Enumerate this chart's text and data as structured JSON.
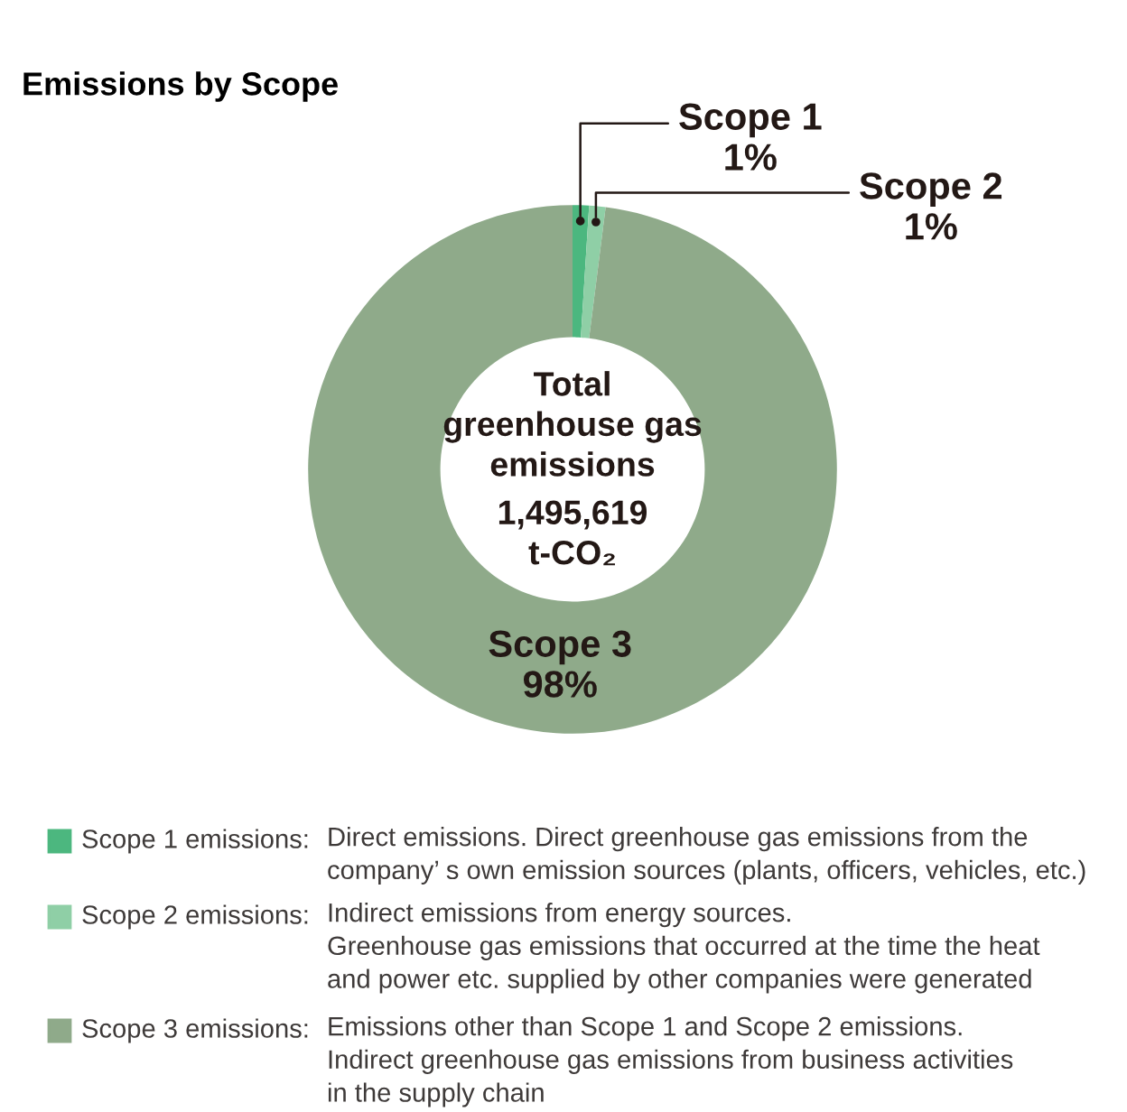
{
  "chart_data": {
    "type": "donut",
    "title": "Emissions by Scope",
    "categories": [
      "Scope 1",
      "Scope 2",
      "Scope 3"
    ],
    "values": [
      1,
      1,
      98
    ],
    "colors": [
      "#4cb77f",
      "#8fcfa6",
      "#8faa8a"
    ],
    "value_labels": [
      "1%",
      "1%",
      "98%"
    ],
    "annotations": [
      "Total\ngreenhouse gas\nemissions",
      "1,495,619\nt-CO₂",
      "Scope 1 emissions: Direct emissions. Direct greenhouse gas emissions from the\ncompany’ s own emission sources (plants, officers, vehicles, etc.)",
      "Scope 2 emissions: Indirect emissions from energy sources.\nGreenhouse gas emissions that occurred at the time the heat\nand power etc. supplied by other companies were generated",
      "Scope 3 emissions: Emissions other than Scope 1 and Scope 2 emissions.\nIndirect greenhouse gas emissions from business activities\nin the supply chain"
    ]
  }
}
